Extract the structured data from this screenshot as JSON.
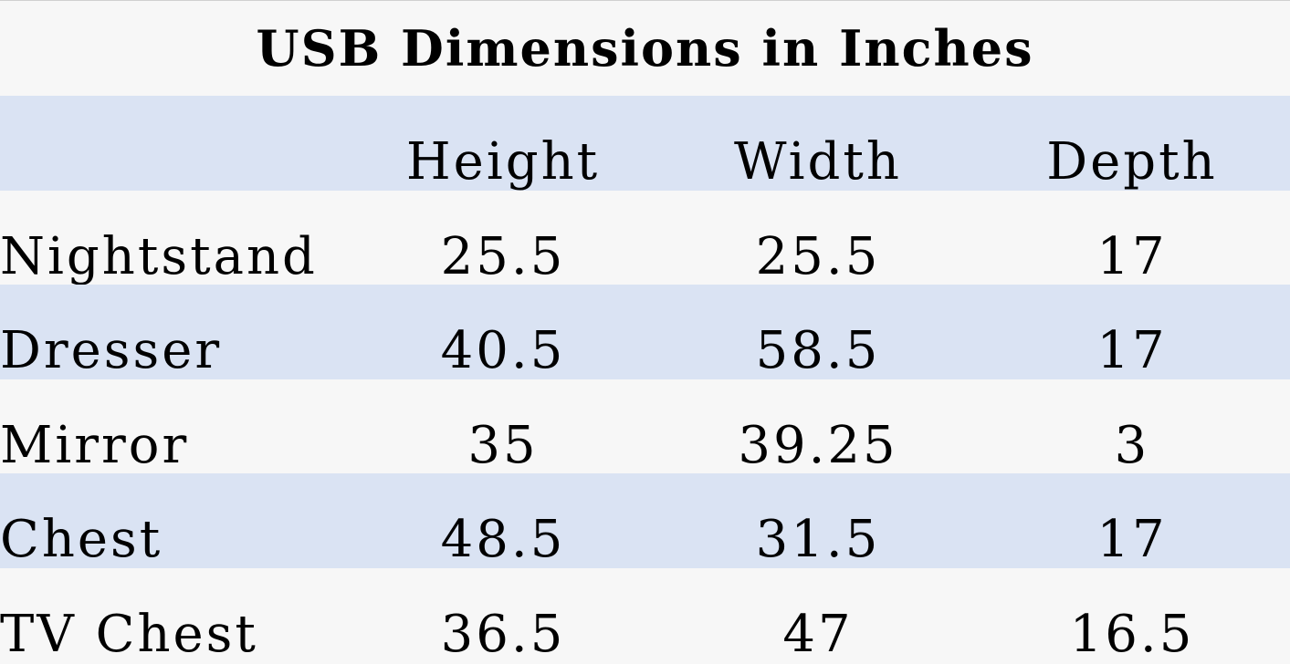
{
  "header": {
    "title": "USB Dimensions in Inches"
  },
  "table": {
    "columns": [
      "Height",
      "Width",
      "Depth"
    ],
    "rows": [
      [
        "Nightstand",
        "25.5",
        "25.5",
        "17"
      ],
      [
        "Dresser",
        "40.5",
        "58.5",
        "17"
      ],
      [
        "Mirror",
        "35",
        "39.25",
        "3"
      ],
      [
        "Chest",
        "48.5",
        "31.5",
        "17"
      ],
      [
        "TV Chest",
        "36.5",
        "47",
        "16.5"
      ]
    ]
  }
}
